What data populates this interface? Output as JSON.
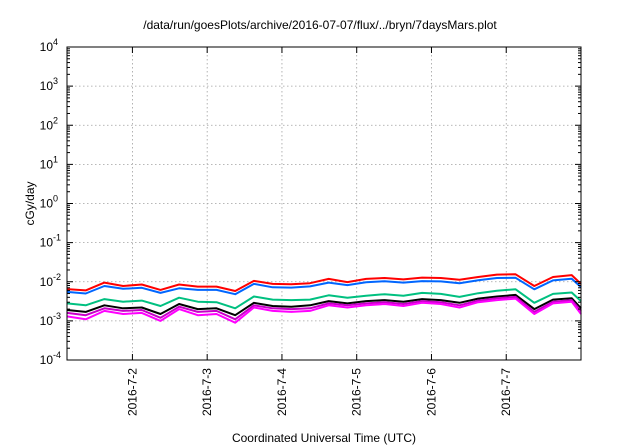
{
  "chart_data": {
    "type": "line",
    "title": "/data/run/goesPlots/archive/2016-07-07/flux/../bryn/7daysMars.plot",
    "xlabel": "Coordinated Universal Time (UTC)",
    "ylabel": "cGy/day",
    "y_scale": "log",
    "ylim": [
      0.0001,
      10000
    ],
    "xlim": [
      "2016-07-01T03:00",
      "2016-07-08T00:00"
    ],
    "grid": true,
    "x_ticks": [
      "2016-7-2",
      "2016-7-3",
      "2016-7-4",
      "2016-7-5",
      "2016-7-6",
      "2016-7-7"
    ],
    "y_ticks": [
      {
        "base": "10",
        "exp": "-4",
        "value": 0.0001
      },
      {
        "base": "10",
        "exp": "-3",
        "value": 0.001
      },
      {
        "base": "10",
        "exp": "-2",
        "value": 0.01
      },
      {
        "base": "10",
        "exp": "-1",
        "value": 0.1
      },
      {
        "base": "10",
        "exp": "0",
        "value": 1
      },
      {
        "base": "10",
        "exp": "1",
        "value": 10
      },
      {
        "base": "10",
        "exp": "2",
        "value": 100
      },
      {
        "base": "10",
        "exp": "3",
        "value": 1000
      },
      {
        "base": "10",
        "exp": "4",
        "value": 10000
      }
    ],
    "x_timestamps": [
      "2016-07-01T03:00",
      "2016-07-01T09:00",
      "2016-07-01T15:00",
      "2016-07-01T21:00",
      "2016-07-02T03:00",
      "2016-07-02T09:00",
      "2016-07-02T15:00",
      "2016-07-02T21:00",
      "2016-07-03T03:00",
      "2016-07-03T09:00",
      "2016-07-03T15:00",
      "2016-07-03T21:00",
      "2016-07-04T03:00",
      "2016-07-04T09:00",
      "2016-07-04T15:00",
      "2016-07-04T21:00",
      "2016-07-05T03:00",
      "2016-07-05T09:00",
      "2016-07-05T15:00",
      "2016-07-05T21:00",
      "2016-07-06T03:00",
      "2016-07-06T09:00",
      "2016-07-06T15:00",
      "2016-07-06T21:00",
      "2016-07-07T03:00",
      "2016-07-07T09:00",
      "2016-07-07T15:00",
      "2016-07-07T21:00",
      "2016-07-08T00:00"
    ],
    "series": [
      {
        "color": "#ff0000",
        "values": [
          0.0065,
          0.006,
          0.0095,
          0.0078,
          0.0085,
          0.0062,
          0.0085,
          0.0075,
          0.0075,
          0.0058,
          0.0105,
          0.0088,
          0.0086,
          0.0092,
          0.0118,
          0.0098,
          0.0118,
          0.0125,
          0.0115,
          0.0128,
          0.0125,
          0.0112,
          0.0132,
          0.0152,
          0.0155,
          0.0078,
          0.0132,
          0.0148,
          0.0088
        ]
      },
      {
        "color": "#0066ff",
        "values": [
          0.0055,
          0.005,
          0.0078,
          0.0066,
          0.007,
          0.0052,
          0.0068,
          0.0062,
          0.0062,
          0.0048,
          0.0088,
          0.0072,
          0.0071,
          0.0076,
          0.0095,
          0.0082,
          0.0097,
          0.0103,
          0.0095,
          0.0104,
          0.0102,
          0.0092,
          0.0109,
          0.0125,
          0.0126,
          0.0064,
          0.0108,
          0.012,
          0.0073
        ]
      },
      {
        "color": "#00c080",
        "values": [
          0.0028,
          0.0025,
          0.0036,
          0.0031,
          0.0033,
          0.0024,
          0.0039,
          0.0031,
          0.003,
          0.0021,
          0.0042,
          0.0035,
          0.0034,
          0.0035,
          0.0045,
          0.0039,
          0.0044,
          0.0048,
          0.0044,
          0.0052,
          0.0049,
          0.0041,
          0.0051,
          0.0059,
          0.0064,
          0.0029,
          0.0049,
          0.0053,
          0.0032
        ]
      },
      {
        "color": "#000000",
        "values": [
          0.0019,
          0.0017,
          0.0025,
          0.0021,
          0.0022,
          0.0015,
          0.0027,
          0.002,
          0.0021,
          0.0014,
          0.0029,
          0.0024,
          0.0023,
          0.0025,
          0.0032,
          0.0028,
          0.0032,
          0.0034,
          0.0031,
          0.0036,
          0.0034,
          0.0029,
          0.0037,
          0.0042,
          0.0046,
          0.002,
          0.0035,
          0.0038,
          0.0021
        ]
      },
      {
        "color": "#c800c8",
        "values": [
          0.0016,
          0.0014,
          0.0021,
          0.0018,
          0.0019,
          0.0012,
          0.0023,
          0.0017,
          0.0018,
          0.0011,
          0.0025,
          0.0021,
          0.002,
          0.0021,
          0.0028,
          0.0025,
          0.0028,
          0.003,
          0.0027,
          0.0032,
          0.003,
          0.0025,
          0.0033,
          0.0038,
          0.0041,
          0.0017,
          0.0031,
          0.0034,
          0.0018
        ]
      },
      {
        "color": "#ff00ff",
        "values": [
          0.0013,
          0.0011,
          0.0018,
          0.0015,
          0.0016,
          0.001,
          0.002,
          0.0014,
          0.0015,
          0.0009,
          0.0022,
          0.0018,
          0.0017,
          0.0018,
          0.0025,
          0.0022,
          0.0025,
          0.0027,
          0.0024,
          0.0029,
          0.0027,
          0.0022,
          0.003,
          0.0034,
          0.0037,
          0.0015,
          0.0028,
          0.0031,
          0.0015
        ]
      }
    ]
  }
}
